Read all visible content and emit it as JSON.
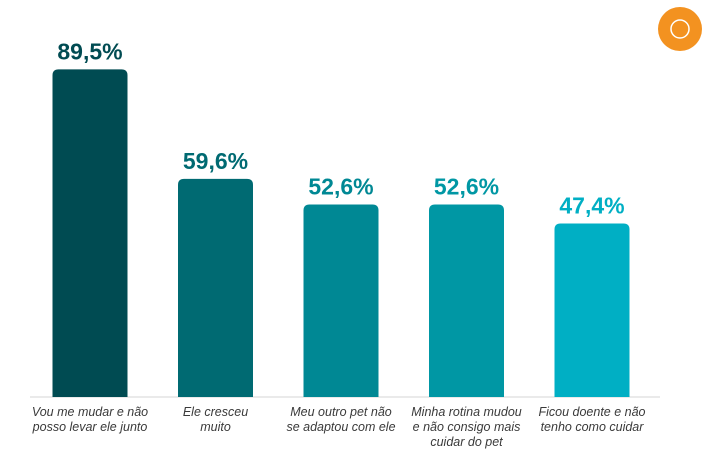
{
  "chart_data": {
    "type": "bar",
    "categories": [
      "Vou me mudar e não\nposso levar ele junto",
      "Ele cresceu\nmuito",
      "Meu outro pet não\nse adaptou com ele",
      "Minha rotina mudou\ne não consigo mais\ncuidar do pet",
      "Ficou doente e não\ntenho como cuidar"
    ],
    "values": [
      89.5,
      59.6,
      52.6,
      52.6,
      47.4
    ],
    "value_labels": [
      "89,5%",
      "59,6%",
      "52,6%",
      "52,6%",
      "47,4%"
    ],
    "colors": [
      "#004b52",
      "#006a72",
      "#008894",
      "#0097a4",
      "#00afc4"
    ]
  }
}
